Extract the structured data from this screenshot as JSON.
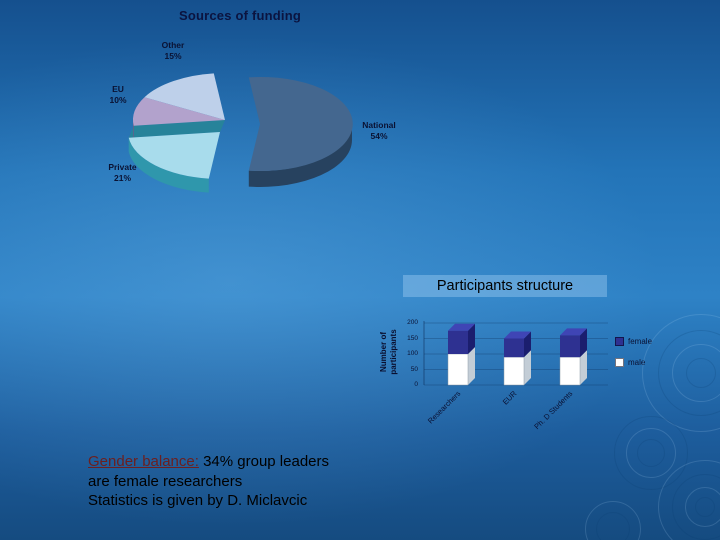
{
  "chart_data": [
    {
      "type": "pie",
      "effect": "3d-exploded",
      "title": "Sources of funding",
      "slices": [
        {
          "label": "National",
          "value": 54,
          "pct": "54%",
          "color": "#44678f"
        },
        {
          "label": "Private",
          "value": 21,
          "pct": "21%",
          "color": "#a8dcec"
        },
        {
          "label": "EU",
          "value": 10,
          "pct": "10%",
          "color": "#b2a2cc"
        },
        {
          "label": "Other",
          "value": 15,
          "pct": "15%",
          "color": "#bed0ea"
        }
      ]
    },
    {
      "type": "bar",
      "stacked": true,
      "title": "Participants structure",
      "ylabel": "Number of participants",
      "ylim": [
        0,
        200
      ],
      "yticks": [
        0,
        50,
        100,
        150,
        200
      ],
      "categories": [
        "Researchers",
        "EUR",
        "Ph. D Students"
      ],
      "series": [
        {
          "name": "female",
          "color": "#2e3191",
          "values": [
            75,
            60,
            70
          ]
        },
        {
          "name": "male",
          "color": "#ffffff",
          "values": [
            100,
            90,
            90
          ]
        }
      ],
      "legend_position": "right",
      "grid": true
    }
  ],
  "caption": {
    "lead": "Gender balance:",
    "line1_rest": " 34% group leaders",
    "line2": "are female researchers",
    "line3": "Statistics is given by D. Miclavcic"
  }
}
